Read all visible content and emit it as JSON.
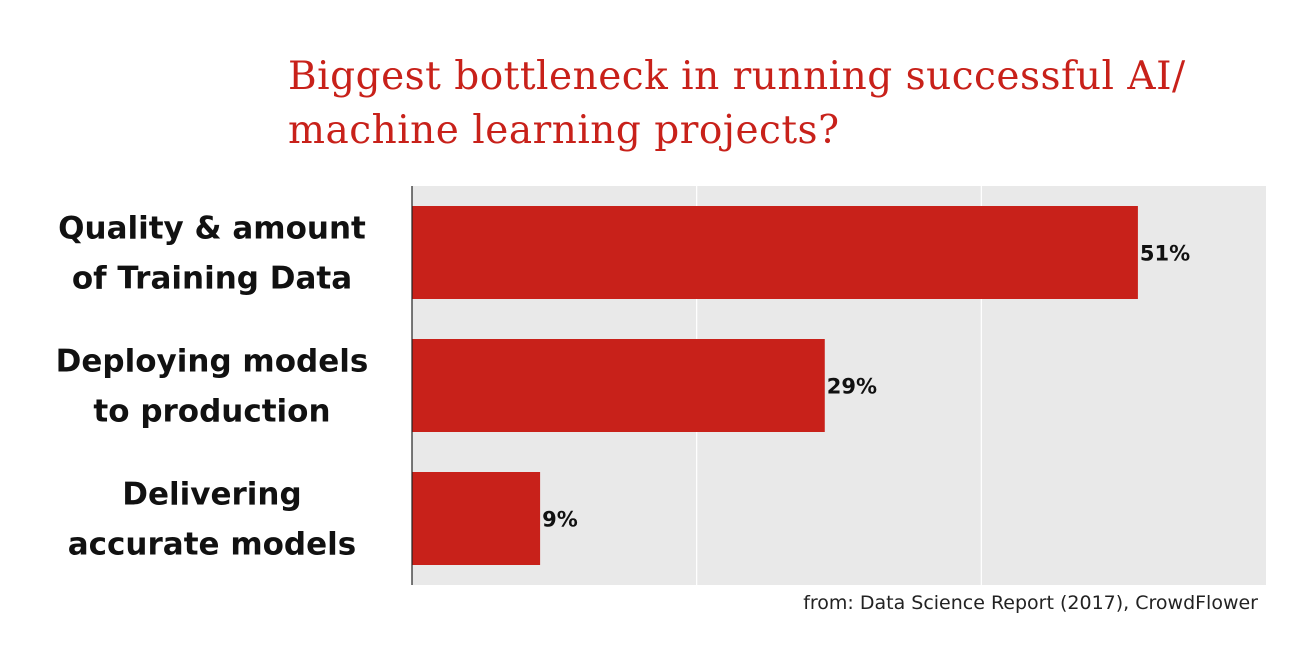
{
  "title": {
    "line1": "Biggest bottleneck in running successful AI/",
    "line2": "machine learning projects?"
  },
  "source": "from: Data Science Report (2017), CrowdFlower",
  "colors": {
    "title": "#c8211a",
    "bar": "#c8211a",
    "plot_bg": "#e9e9e9"
  },
  "chart_data": {
    "type": "bar",
    "orientation": "horizontal",
    "categories": [
      [
        "Quality & amount",
        "of Training Data"
      ],
      [
        "Deploying models",
        "to production"
      ],
      [
        "Delivering",
        "accurate models"
      ]
    ],
    "values": [
      51,
      29,
      9
    ],
    "value_labels": [
      "51%",
      "29%",
      "9%"
    ],
    "unit": "%",
    "xlim": [
      0,
      60
    ],
    "grid": true
  }
}
